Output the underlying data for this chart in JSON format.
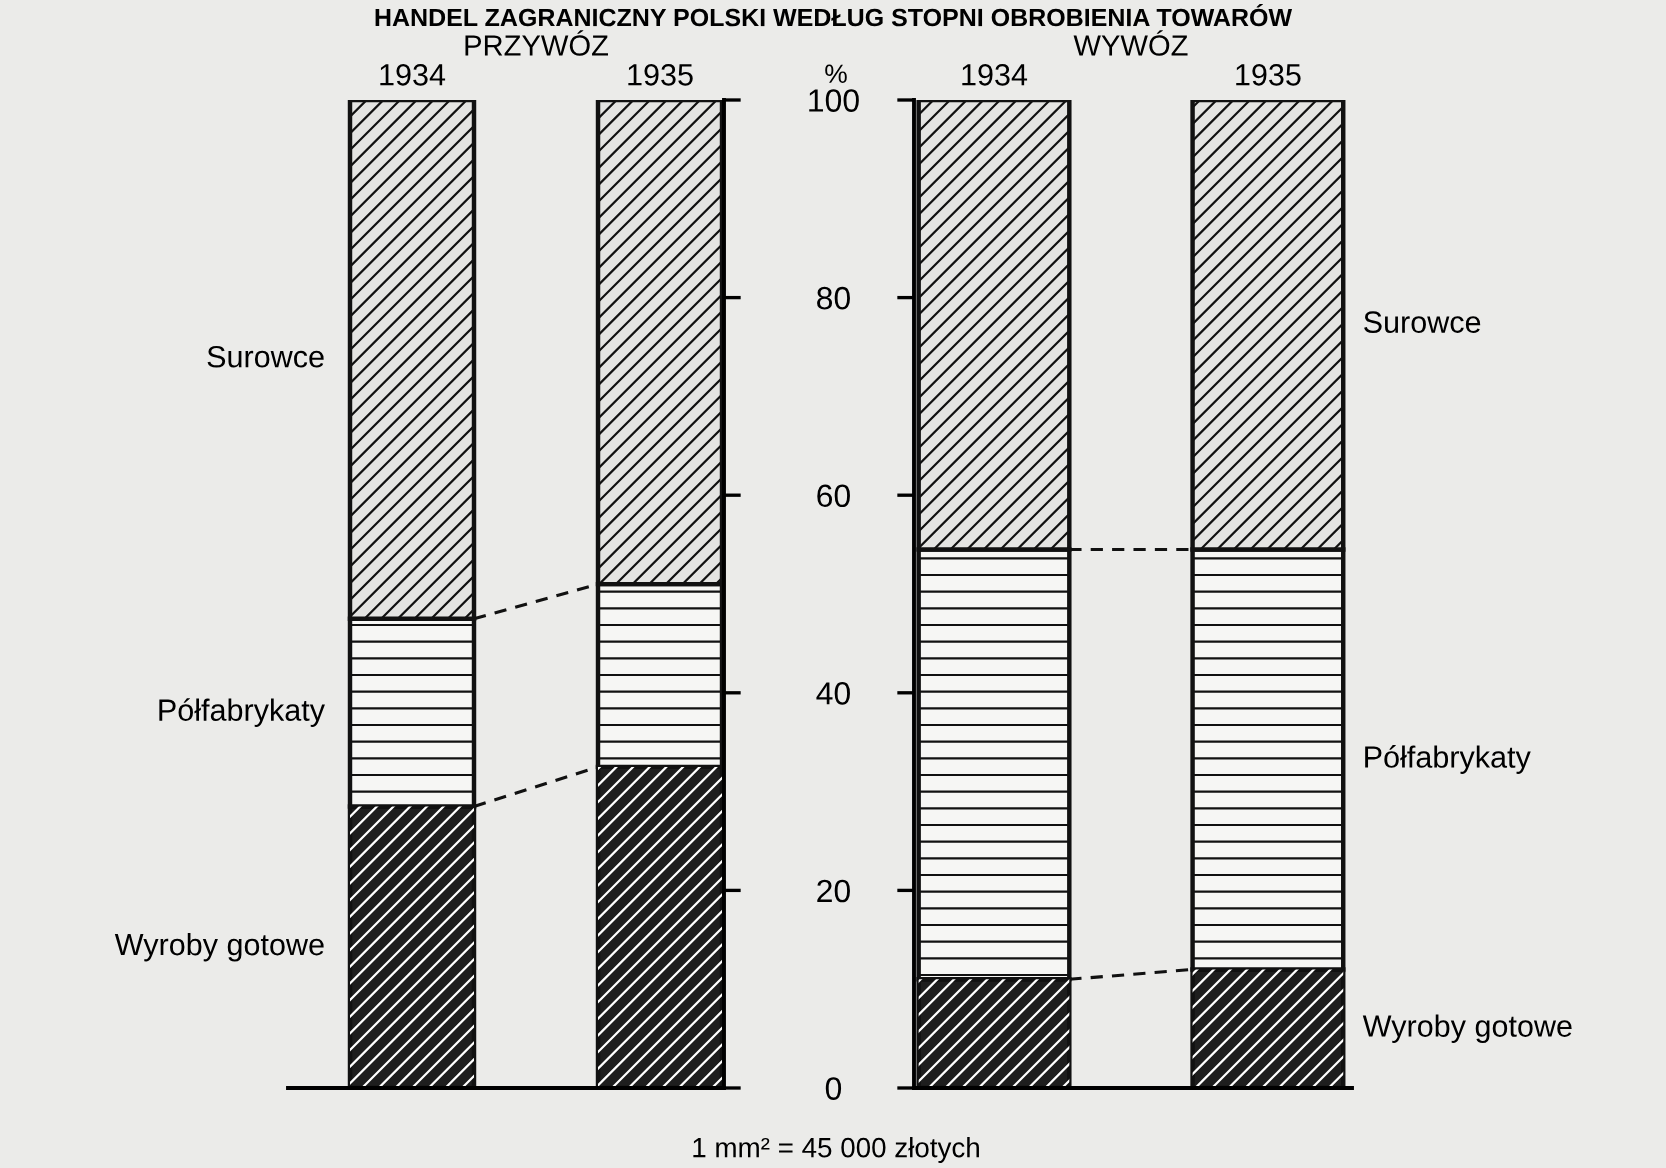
{
  "chart_data": [
    {
      "type": "bar",
      "stacked": true,
      "title": "HANDEL ZAGRANICZNY POLSKI WEDŁUG STOPNI OBROBIENIA TOWARÓW",
      "subtitle": "PRZYWÓZ",
      "categories": [
        "1934",
        "1935"
      ],
      "series": [
        {
          "name": "Wyroby gotowe",
          "color": "#1e1e1e",
          "values": [
            28.5,
            32.5
          ]
        },
        {
          "name": "Półfabrykaty",
          "color": "#f6f6f4",
          "values": [
            19,
            18.5
          ]
        },
        {
          "name": "Surowce",
          "color": "#e4e4e2",
          "values": [
            52.5,
            49
          ]
        }
      ],
      "ylim": [
        0,
        100
      ],
      "yticks": [
        0,
        20,
        40,
        60,
        80,
        100
      ],
      "tick_labels": "x"
    },
    {
      "type": "bar",
      "stacked": true,
      "subtitle": "WYWÓZ",
      "ylabel": "%",
      "categories": [
        "1934",
        "1935"
      ],
      "series": [
        {
          "name": "Wyroby gotowe",
          "color": "#1e1e1e",
          "values": [
            11,
            12
          ]
        },
        {
          "name": "Półfabrykaty",
          "color": "#f6f6f4",
          "values": [
            43.5,
            42.5
          ]
        },
        {
          "name": "Surowce",
          "color": "#e4e4e2",
          "values": [
            45.5,
            45.5
          ]
        }
      ],
      "ylim": [
        0,
        100
      ],
      "yticks": [
        0,
        20,
        40,
        60,
        80,
        100
      ],
      "annotations": [
        "1 mm² = 45 000 złotych"
      ]
    }
  ]
}
